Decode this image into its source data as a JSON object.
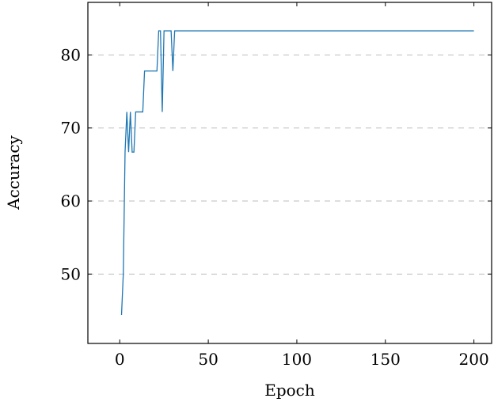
{
  "chart_data": {
    "type": "line",
    "title": "",
    "xlabel": "Epoch",
    "ylabel": "Accuracy",
    "xlim": [
      -18,
      210
    ],
    "ylim": [
      40.5,
      87.2
    ],
    "xticks": [
      0,
      50,
      100,
      150,
      200
    ],
    "yticks": [
      50,
      60,
      70,
      80
    ],
    "grid": "y-dashed",
    "legend": "none",
    "series": [
      {
        "color": "#1f77b4",
        "x": [
          1,
          2,
          3,
          4,
          5,
          6,
          7,
          8,
          9,
          10,
          11,
          12,
          13,
          14,
          15,
          16,
          17,
          18,
          19,
          20,
          21,
          22,
          23,
          24,
          25,
          26,
          27,
          28,
          29,
          30,
          31,
          32,
          200
        ],
        "y": [
          44.4,
          50.0,
          66.7,
          72.2,
          66.7,
          72.2,
          66.7,
          66.7,
          72.2,
          72.2,
          72.2,
          72.2,
          72.2,
          77.8,
          77.8,
          77.8,
          77.8,
          77.8,
          77.8,
          77.8,
          77.8,
          83.3,
          83.3,
          72.2,
          83.3,
          83.3,
          83.3,
          83.3,
          83.3,
          77.8,
          83.3,
          83.3,
          83.3
        ]
      }
    ]
  }
}
